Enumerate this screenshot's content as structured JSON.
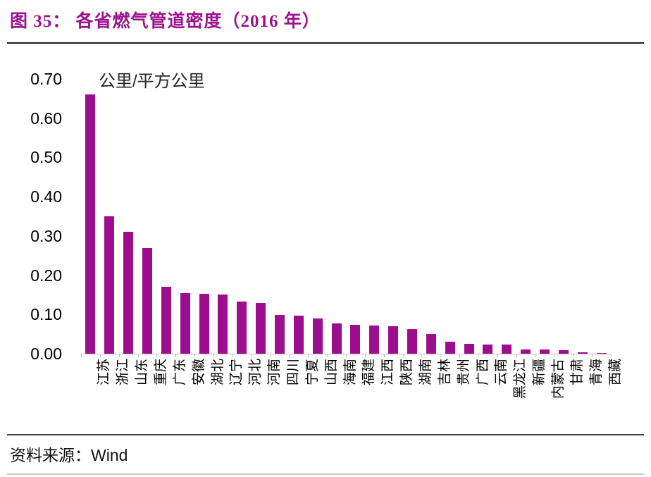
{
  "title": "图 35： 各省燃气管道密度（2016 年）",
  "footer": {
    "source_label": "资料来源：",
    "source_value": "Wind"
  },
  "colors": {
    "bar": "#9c0e8e",
    "title": "#9c128f",
    "axis": "#bfbfbf",
    "rule_top": "#1a1a1a",
    "rule_footer": "#3d3d3d"
  },
  "chart_data": {
    "type": "bar",
    "title": "各省燃气管道密度（2016 年）",
    "unit_label": "公里/平方公里",
    "xlabel": "",
    "ylabel": "公里/平方公里",
    "ylim": [
      0,
      0.7
    ],
    "ytick_interval": 0.1,
    "ytick_labels": [
      "0.70",
      "0.60",
      "0.50",
      "0.40",
      "0.30",
      "0.20",
      "0.10",
      "0.00"
    ],
    "grid": false,
    "legend": "none",
    "bar_color": "#9c0e8e",
    "categories": [
      "江苏",
      "浙江",
      "山东",
      "重庆",
      "广东",
      "安徽",
      "湖北",
      "辽宁",
      "河北",
      "河南",
      "四川",
      "宁夏",
      "山西",
      "海南",
      "福建",
      "江西",
      "陕西",
      "湖南",
      "吉林",
      "贵州",
      "广西",
      "云南",
      "黑龙江",
      "新疆",
      "内蒙古",
      "甘肃",
      "青海",
      "西藏"
    ],
    "values": [
      0.66,
      0.35,
      0.31,
      0.27,
      0.17,
      0.155,
      0.153,
      0.151,
      0.132,
      0.129,
      0.099,
      0.097,
      0.089,
      0.077,
      0.073,
      0.072,
      0.07,
      0.063,
      0.051,
      0.03,
      0.025,
      0.024,
      0.023,
      0.01,
      0.01,
      0.009,
      0.004,
      0.001
    ]
  }
}
